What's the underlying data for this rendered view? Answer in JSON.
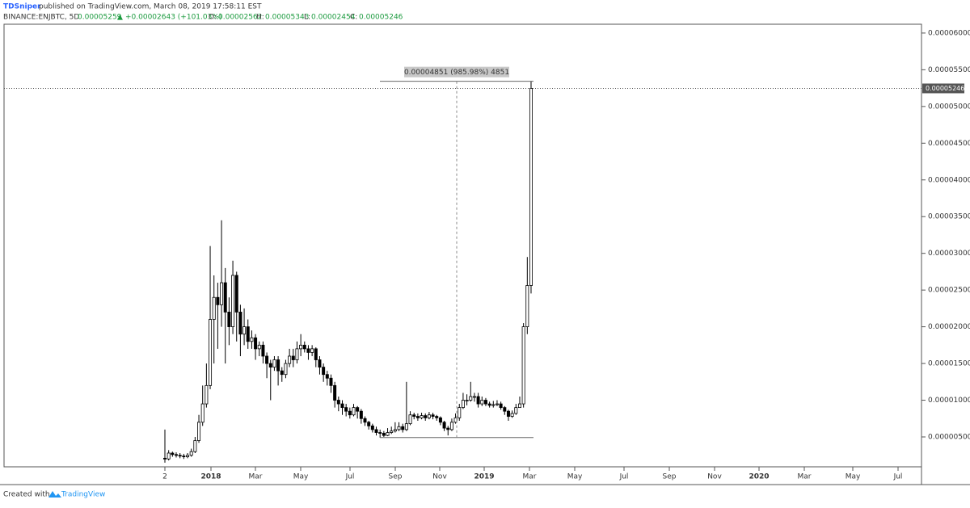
{
  "chart_data": {
    "type": "candlestick",
    "header": {
      "author": "TDSniper",
      "published": "published on TradingView.com, March 08, 2019 17:58:11 EST",
      "symbol": "BINANCE:ENJBTC, 5D",
      "last": "0.00005259",
      "arrow": "▲",
      "change": "+0.00002643 (+101.03%)",
      "o_label": "O:",
      "open": "0.00002562",
      "h_label": "H:",
      "high": "0.00005343",
      "l_label": "L:",
      "low": "0.00002454",
      "c_label": "C:",
      "close": "0.00005246"
    },
    "footer": {
      "created": "Created with",
      "brand": "TradingView"
    },
    "measure": {
      "label": "0.00004851 (985.98%) 4851",
      "from": 4.92e-06,
      "to": 5.343e-05
    },
    "up_color": "#ffffff",
    "down_color": "#000000",
    "open": [
      2.1e-06,
      2e-06,
      2.8e-06,
      2.6e-06,
      2.5e-06,
      2.4e-06,
      2.3e-06,
      2.5e-06,
      3e-06,
      4.5e-06,
      7e-06,
      9.5e-06,
      1.2e-05,
      2.1e-05,
      2.4e-05,
      2.3e-05,
      2.6e-05,
      2.2e-05,
      2e-05,
      2.7e-05,
      2.2e-05,
      1.9e-05,
      2e-05,
      1.8e-05,
      1.85e-05,
      1.7e-05,
      1.75e-05,
      1.6e-05,
      1.5e-05,
      1.45e-05,
      1.55e-05,
      1.4e-05,
      1.35e-05,
      1.5e-05,
      1.6e-05,
      1.55e-05,
      1.7e-05,
      1.75e-05,
      1.7e-05,
      1.65e-05,
      1.7e-05,
      1.55e-05,
      1.45e-05,
      1.35e-05,
      1.3e-05,
      1.2e-05,
      1e-05,
      9.5e-06,
      9e-06,
      8.5e-06,
      8e-06,
      9e-06,
      8.5e-06,
      7.5e-06,
      7e-06,
      6.5e-06,
      6e-06,
      5.6e-06,
      5.5e-06,
      5.2e-06,
      5.6e-06,
      5.8e-06,
      6e-06,
      6.4e-06,
      6e-06,
      6.8e-06,
      8e-06,
      7.8e-06,
      7.6e-06,
      7.9e-06,
      7.6e-06,
      8e-06,
      7.8e-06,
      7.6e-06,
      7e-06,
      6.2e-06,
      6e-06,
      7e-06,
      7.6e-06,
      9e-06,
      1e-05,
      1e-05,
      1.05e-05,
      1.05e-05,
      9.5e-06,
      1e-05,
      9.5e-06,
      9.3e-06,
      9.4e-06,
      9.5e-06,
      9e-06,
      8.5e-06,
      7.8e-06,
      8.2e-06,
      9e-06,
      9.5e-06,
      2e-05,
      2.562e-05
    ],
    "high": [
      6e-06,
      3.2e-06,
      3e-06,
      2.9e-06,
      2.8e-06,
      2.7e-06,
      2.8e-06,
      3.4e-06,
      5e-06,
      8e-06,
      1.2e-05,
      1.5e-05,
      3.1e-05,
      2.7e-05,
      2.6e-05,
      3.45e-05,
      2.8e-05,
      2.4e-05,
      2.9e-05,
      2.75e-05,
      2.3e-05,
      2.25e-05,
      2.1e-05,
      1.95e-05,
      1.9e-05,
      1.8e-05,
      1.8e-05,
      1.65e-05,
      1.55e-05,
      1.6e-05,
      1.6e-05,
      1.45e-05,
      1.55e-05,
      1.7e-05,
      1.7e-05,
      1.8e-05,
      1.9e-05,
      1.8e-05,
      1.75e-05,
      1.75e-05,
      1.72e-05,
      1.6e-05,
      1.5e-05,
      1.4e-05,
      1.35e-05,
      1.25e-05,
      1.05e-05,
      1e-05,
      9.5e-06,
      9e-06,
      9.5e-06,
      9.2e-06,
      8.8e-06,
      7.8e-06,
      7.2e-06,
      6.8e-06,
      6.4e-06,
      6e-06,
      5.8e-06,
      6.2e-06,
      6.4e-06,
      7e-06,
      7e-06,
      6.8e-06,
      1.25e-05,
      8.5e-06,
      8.3e-06,
      8.2e-06,
      8.3e-06,
      8.2e-06,
      8.4e-06,
      8.3e-06,
      8e-06,
      7.8e-06,
      7.2e-06,
      6.5e-06,
      7.5e-06,
      8.2e-06,
      9.5e-06,
      1.1e-05,
      1.08e-05,
      1.25e-05,
      1.1e-05,
      1.1e-05,
      1.05e-05,
      1.03e-05,
      9.8e-06,
      9.9e-06,
      1e-05,
      9.8e-06,
      9.2e-06,
      8.7e-06,
      8.6e-06,
      9.5e-06,
      1.05e-05,
      2.05e-05,
      2.95e-05,
      5.343e-05
    ],
    "low": [
      1.5e-06,
      1.8e-06,
      2.3e-06,
      2.2e-06,
      2.1e-06,
      2e-06,
      2.1e-06,
      2.3e-06,
      2.8e-06,
      4.2e-06,
      6.5e-06,
      9e-06,
      1.15e-05,
      1.5e-05,
      1.7e-05,
      2e-05,
      1.5e-05,
      1.75e-05,
      1.9e-05,
      1.8e-05,
      1.6e-05,
      1.75e-05,
      1.7e-05,
      1.7e-05,
      1.55e-05,
      1.6e-05,
      1.5e-05,
      1.3e-05,
      1e-05,
      1.4e-05,
      1.2e-05,
      1.25e-05,
      1.3e-05,
      1.45e-05,
      1.45e-05,
      1.5e-05,
      1.6e-05,
      1.65e-05,
      1.55e-05,
      1.6e-05,
      1.45e-05,
      1.35e-05,
      1.25e-05,
      1.2e-05,
      1.1e-05,
      9e-06,
      8.5e-06,
      8e-06,
      7.8e-06,
      7.5e-06,
      7.8e-06,
      7.5e-06,
      6.8e-06,
      6.5e-06,
      6e-06,
      5.6e-06,
      5.2e-06,
      4.9e-06,
      5e-06,
      5.1e-06,
      5.4e-06,
      5.6e-06,
      5.8e-06,
      5.6e-06,
      5.8e-06,
      6.6e-06,
      7.4e-06,
      7.2e-06,
      7.4e-06,
      7.2e-06,
      7.4e-06,
      7.4e-06,
      7.2e-06,
      6.6e-06,
      5.8e-06,
      5.2e-06,
      5.8e-06,
      6.8e-06,
      7.2e-06,
      8.8e-06,
      9.3e-06,
      9.8e-06,
      9.8e-06,
      9e-06,
      9.2e-06,
      9.2e-06,
      9e-06,
      9e-06,
      9.2e-06,
      8.7e-06,
      8e-06,
      7.2e-06,
      7.6e-06,
      8e-06,
      9e-06,
      9e-06,
      1.9e-05,
      2.454e-05
    ],
    "close": [
      2e-06,
      2.8e-06,
      2.6e-06,
      2.5e-06,
      2.4e-06,
      2.3e-06,
      2.5e-06,
      3e-06,
      4.5e-06,
      7e-06,
      9.5e-06,
      1.2e-05,
      2.1e-05,
      2.4e-05,
      2.3e-05,
      2.6e-05,
      2.2e-05,
      2e-05,
      2.7e-05,
      2.2e-05,
      1.9e-05,
      2e-05,
      1.8e-05,
      1.85e-05,
      1.7e-05,
      1.75e-05,
      1.6e-05,
      1.5e-05,
      1.45e-05,
      1.55e-05,
      1.4e-05,
      1.35e-05,
      1.5e-05,
      1.6e-05,
      1.55e-05,
      1.7e-05,
      1.75e-05,
      1.7e-05,
      1.65e-05,
      1.7e-05,
      1.55e-05,
      1.45e-05,
      1.35e-05,
      1.3e-05,
      1.2e-05,
      1e-05,
      9.5e-06,
      9e-06,
      8.5e-06,
      8e-06,
      9e-06,
      8.5e-06,
      7.5e-06,
      7e-06,
      6.5e-06,
      6e-06,
      5.6e-06,
      5.5e-06,
      5.2e-06,
      5.6e-06,
      5.8e-06,
      6e-06,
      6.4e-06,
      6e-06,
      6.8e-06,
      8e-06,
      7.8e-06,
      7.6e-06,
      7.9e-06,
      7.6e-06,
      8e-06,
      7.8e-06,
      7.6e-06,
      7e-06,
      6.2e-06,
      6e-06,
      7e-06,
      7.6e-06,
      9e-06,
      1e-05,
      1e-05,
      1.05e-05,
      1.05e-05,
      9.5e-06,
      1e-05,
      9.5e-06,
      9.3e-06,
      9.4e-06,
      9.5e-06,
      9e-06,
      8.5e-06,
      7.8e-06,
      8.2e-06,
      9e-06,
      9.5e-06,
      2e-05,
      2.562e-05,
      5.246e-05
    ],
    "xticks": [
      "2",
      "2018",
      "Mar",
      "May",
      "Jul",
      "Sep",
      "Nov",
      "2019",
      "Mar",
      "May",
      "Jul",
      "Sep",
      "Nov",
      "2020",
      "Mar",
      "May",
      "Jul"
    ],
    "ylim": [
      9.3e-07,
      6.12e-05
    ],
    "yticks": [
      {
        "value": 5e-06,
        "label": "0.00000500"
      },
      {
        "value": 1e-05,
        "label": "0.00001000"
      },
      {
        "value": 1.5e-05,
        "label": "0.00001500"
      },
      {
        "value": 2e-05,
        "label": "0.00002000"
      },
      {
        "value": 2.5e-05,
        "label": "0.00002500"
      },
      {
        "value": 3e-05,
        "label": "0.00003000"
      },
      {
        "value": 3.5e-05,
        "label": "0.00003500"
      },
      {
        "value": 4e-05,
        "label": "0.00004000"
      },
      {
        "value": 4.5e-05,
        "label": "0.00004500"
      },
      {
        "value": 5e-05,
        "label": "0.00005000"
      },
      {
        "value": 5.5e-05,
        "label": "0.00005500"
      },
      {
        "value": 6e-05,
        "label": "0.00006000"
      }
    ]
  }
}
